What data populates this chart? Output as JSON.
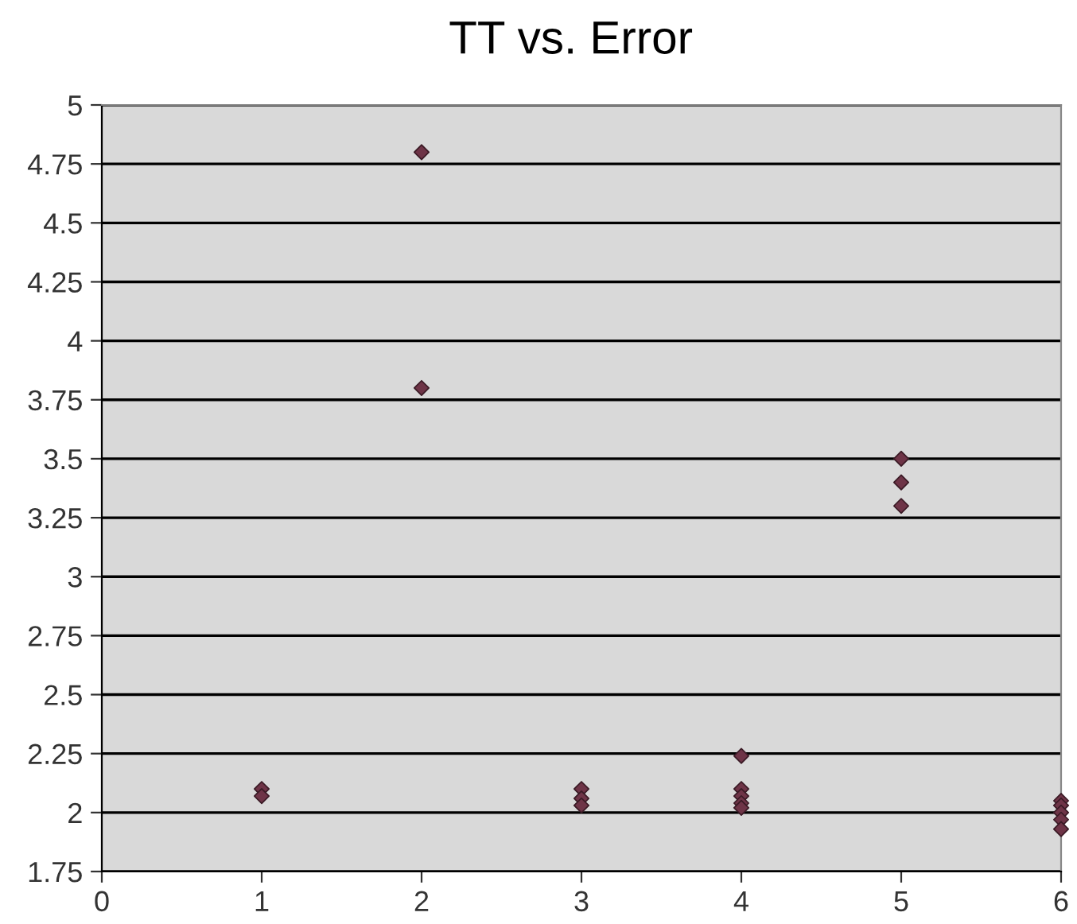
{
  "chart_data": {
    "type": "scatter",
    "title": "TT vs. Error",
    "x": [
      1,
      1,
      2,
      2,
      3,
      3,
      3,
      4,
      4,
      4,
      4,
      4,
      5,
      5,
      5,
      6,
      6,
      6,
      6,
      6
    ],
    "values": [
      2.1,
      2.07,
      4.8,
      3.8,
      2.1,
      2.06,
      2.03,
      2.24,
      2.1,
      2.07,
      2.04,
      2.02,
      3.5,
      3.4,
      3.3,
      2.05,
      2.03,
      2.0,
      1.97,
      1.93
    ],
    "color": "#6e3447",
    "marker": "diamond",
    "xlim": [
      0,
      6
    ],
    "xticks": [
      0,
      1,
      2,
      3,
      4,
      5,
      6
    ],
    "ylim": [
      1.75,
      5
    ],
    "yticks": [
      1.75,
      2,
      2.25,
      2.5,
      2.75,
      3,
      3.25,
      3.5,
      3.75,
      4,
      4.25,
      4.5,
      4.75,
      5
    ],
    "grid": "y"
  }
}
